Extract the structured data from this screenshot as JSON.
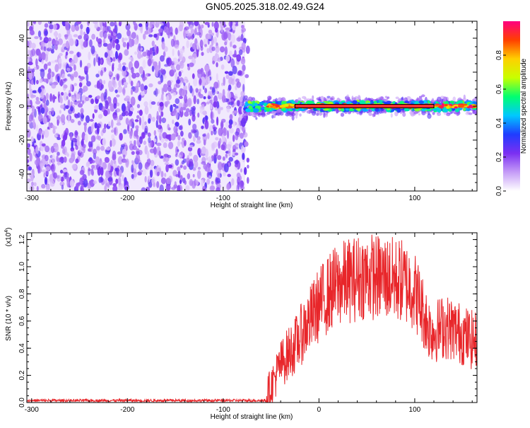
{
  "title": "GN05.2025.318.02.49.G24",
  "colors": {
    "snr_line": "#e8262a",
    "spectrum_sparse": "#7b2ff2",
    "frame": "#000000"
  },
  "chart_data": [
    {
      "type": "heatmap",
      "name": "spectrogram",
      "xlabel": "Height of straight line (km)",
      "ylabel": "Frequency (Hz)",
      "xlim": [
        -305,
        165
      ],
      "ylim": [
        -50,
        50
      ],
      "xticks": [
        -300,
        -200,
        -100,
        0,
        100
      ],
      "xtick_labels": [
        "-300",
        "-200",
        "-100",
        "0",
        "100"
      ],
      "yticks": [
        -40,
        -20,
        0,
        20,
        40
      ],
      "ytick_labels": [
        "-40",
        "-20",
        "0",
        "20",
        "40"
      ],
      "noise_region_x": [
        -305,
        -77
      ],
      "signal_region_x": [
        -77,
        165
      ],
      "signal_frequency": 0,
      "colorbar": {
        "label": "Normalized spectral amplitude",
        "range": [
          0,
          1
        ],
        "ticks": [
          0.0,
          0.2,
          0.4,
          0.6,
          0.8
        ],
        "tick_labels": [
          "0.0",
          "0.2",
          "0.4",
          "0.6",
          "0.8"
        ],
        "colormap": [
          "#ffffff",
          "#c59cf7",
          "#7b2ff2",
          "#1f3cff",
          "#00c8ff",
          "#00ff70",
          "#c8ff00",
          "#ffd000",
          "#ff4000",
          "#ff0080"
        ]
      }
    },
    {
      "type": "line",
      "name": "snr",
      "xlabel": "Height of straight line (km)",
      "ylabel": "SNR (10 * v/v)",
      "multiplier_label": "(x10",
      "multiplier_exp": "4",
      "multiplier_close": ")",
      "xlim": [
        -305,
        165
      ],
      "ylim": [
        0,
        1.25
      ],
      "xticks": [
        -300,
        -200,
        -100,
        0,
        100
      ],
      "xtick_labels": [
        "-300",
        "-200",
        "-100",
        "0",
        "100"
      ],
      "yticks": [
        0,
        0.2,
        0.4,
        0.6,
        0.8,
        1.0,
        1.2
      ],
      "ytick_labels": [
        "0.0",
        "0.2",
        "0.4",
        "0.6",
        "0.8",
        "1.0",
        "1.2"
      ],
      "series": [
        {
          "x": [
            -305,
            -280,
            -250,
            -220,
            -190,
            -160,
            -130,
            -100,
            -80,
            -60,
            -55,
            -50,
            -45,
            -40,
            -35,
            -30,
            -25,
            -20,
            -15,
            -10,
            -5,
            0,
            5,
            10,
            15,
            20,
            25,
            30,
            35,
            40,
            45,
            50,
            55,
            60,
            65,
            70,
            75,
            80,
            85,
            90,
            95,
            100,
            105,
            110,
            115,
            120,
            125,
            130,
            135,
            140,
            145,
            150,
            155,
            160,
            165
          ],
          "y": [
            0.02,
            0.02,
            0.02,
            0.02,
            0.02,
            0.02,
            0.02,
            0.02,
            0.02,
            0.02,
            0.05,
            0.12,
            0.2,
            0.28,
            0.33,
            0.38,
            0.42,
            0.48,
            0.55,
            0.6,
            0.66,
            0.72,
            0.76,
            0.8,
            0.84,
            0.86,
            0.88,
            0.9,
            0.9,
            0.92,
            0.93,
            0.93,
            0.93,
            0.92,
            0.92,
            0.92,
            0.91,
            0.9,
            0.9,
            0.88,
            0.86,
            0.82,
            0.74,
            0.64,
            0.55,
            0.52,
            0.54,
            0.56,
            0.55,
            0.54,
            0.52,
            0.5,
            0.48,
            0.46,
            0.45
          ]
        }
      ]
    }
  ]
}
